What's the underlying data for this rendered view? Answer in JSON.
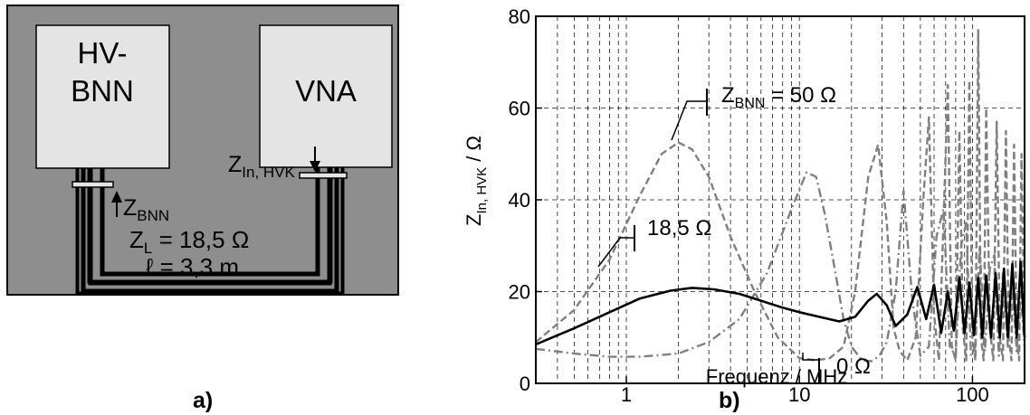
{
  "panel_a": {
    "box_left_line1": "HV-",
    "box_left_line2": "BNN",
    "box_right": "VNA",
    "z_in_main": "Z",
    "z_in_sub": "In, HVK",
    "z_bnn_main": "Z",
    "z_bnn_sub": "BNN",
    "zl_main": "Z",
    "zl_sub": "L",
    "zl_value": " = 18,5 Ω",
    "length": "ℓ = 3,3 m",
    "caption": "a)"
  },
  "panel_b": {
    "caption": "b)",
    "annotation_50_main": "Z",
    "annotation_50_sub": "BNN",
    "annotation_50_value": " = 50 Ω",
    "annotation_185": "18,5 Ω",
    "annotation_0": "0 Ω"
  },
  "chart_data": {
    "type": "line",
    "xlabel": "Frequenz / MHz",
    "ylabel_main": "Z",
    "ylabel_sub": "In, HVK",
    "ylabel_unit": " / Ω",
    "xscale": "log",
    "xlim": [
      0.3,
      200
    ],
    "ylim": [
      0,
      80
    ],
    "xticks": [
      1,
      10,
      100
    ],
    "xtick_labels": [
      "1",
      "10",
      "100"
    ],
    "yticks": [
      0,
      20,
      40,
      60,
      80
    ],
    "ytick_labels": [
      "0",
      "20",
      "40",
      "60",
      "80"
    ],
    "grid": true,
    "series": [
      {
        "name": "18,5 Ω",
        "style": "solid",
        "color": "#000000",
        "x": [
          0.3,
          0.5,
          0.8,
          1.2,
          1.8,
          2.4,
          3.2,
          4.5,
          6,
          8,
          10,
          13,
          17,
          21,
          25,
          28,
          32,
          36,
          42,
          48,
          54,
          60,
          66,
          72,
          78,
          84,
          90,
          96,
          102,
          108,
          114,
          120,
          128,
          136,
          144,
          152,
          160,
          170,
          180,
          190,
          200
        ],
        "values": [
          8.5,
          12,
          15.5,
          18.5,
          20.2,
          20.8,
          20.5,
          19.5,
          18,
          16.5,
          15.5,
          14.5,
          13.5,
          14.5,
          18,
          19.5,
          17,
          12.5,
          15,
          21,
          14,
          21.5,
          11,
          20,
          11.5,
          23,
          11,
          22,
          10.5,
          23,
          10,
          23.5,
          10,
          24,
          10,
          25,
          10,
          26,
          10,
          26.5,
          10
        ]
      },
      {
        "name": "Z_BNN = 50 Ω",
        "style": "dashed",
        "color": "#808080",
        "x": [
          0.3,
          0.5,
          0.8,
          1.2,
          1.6,
          2.0,
          2.4,
          3.0,
          4.0,
          5.5,
          7.5,
          10,
          12.5,
          15,
          18,
          21,
          25,
          28.5,
          32,
          35,
          38,
          42,
          47,
          52,
          56,
          60,
          64,
          68,
          72,
          76,
          80,
          84,
          88,
          92,
          96,
          100,
          104,
          108,
          112,
          116,
          120,
          126,
          132,
          138,
          144,
          150,
          156,
          162,
          168,
          174,
          180,
          186,
          192,
          200
        ],
        "values": [
          9,
          16,
          27,
          41,
          50,
          52.5,
          51,
          45,
          32,
          20,
          10,
          5.5,
          5,
          5.5,
          8,
          20,
          45,
          52,
          35,
          12,
          7,
          5,
          10,
          40,
          58,
          15,
          5,
          35,
          65,
          8,
          5,
          55,
          12,
          5,
          66,
          10,
          5,
          77,
          10,
          5,
          60,
          12,
          5,
          57,
          10,
          5,
          55,
          10,
          5,
          52,
          10,
          5,
          50,
          10
        ]
      },
      {
        "name": "0 Ω",
        "style": "dash-dot",
        "color": "#808080",
        "x": [
          0.3,
          0.5,
          0.8,
          1.2,
          2,
          3,
          4.5,
          6.5,
          9,
          11,
          12.5,
          14,
          16,
          18,
          20,
          23,
          26,
          29,
          32,
          36,
          40,
          45,
          50,
          56,
          62,
          68,
          74,
          80,
          86,
          92,
          98,
          104,
          110,
          118,
          126,
          134,
          142,
          150,
          160,
          170,
          180,
          190,
          200
        ],
        "values": [
          7.5,
          6.5,
          5.8,
          5.8,
          6.5,
          9,
          14,
          24,
          38,
          46,
          45,
          37,
          25,
          14,
          8,
          5,
          4.8,
          6,
          9,
          20,
          42,
          18,
          6,
          8,
          32,
          38,
          8,
          6,
          30,
          35,
          6,
          8,
          30,
          7,
          25,
          28,
          6,
          24,
          8,
          22,
          7,
          20,
          8
        ]
      }
    ]
  }
}
